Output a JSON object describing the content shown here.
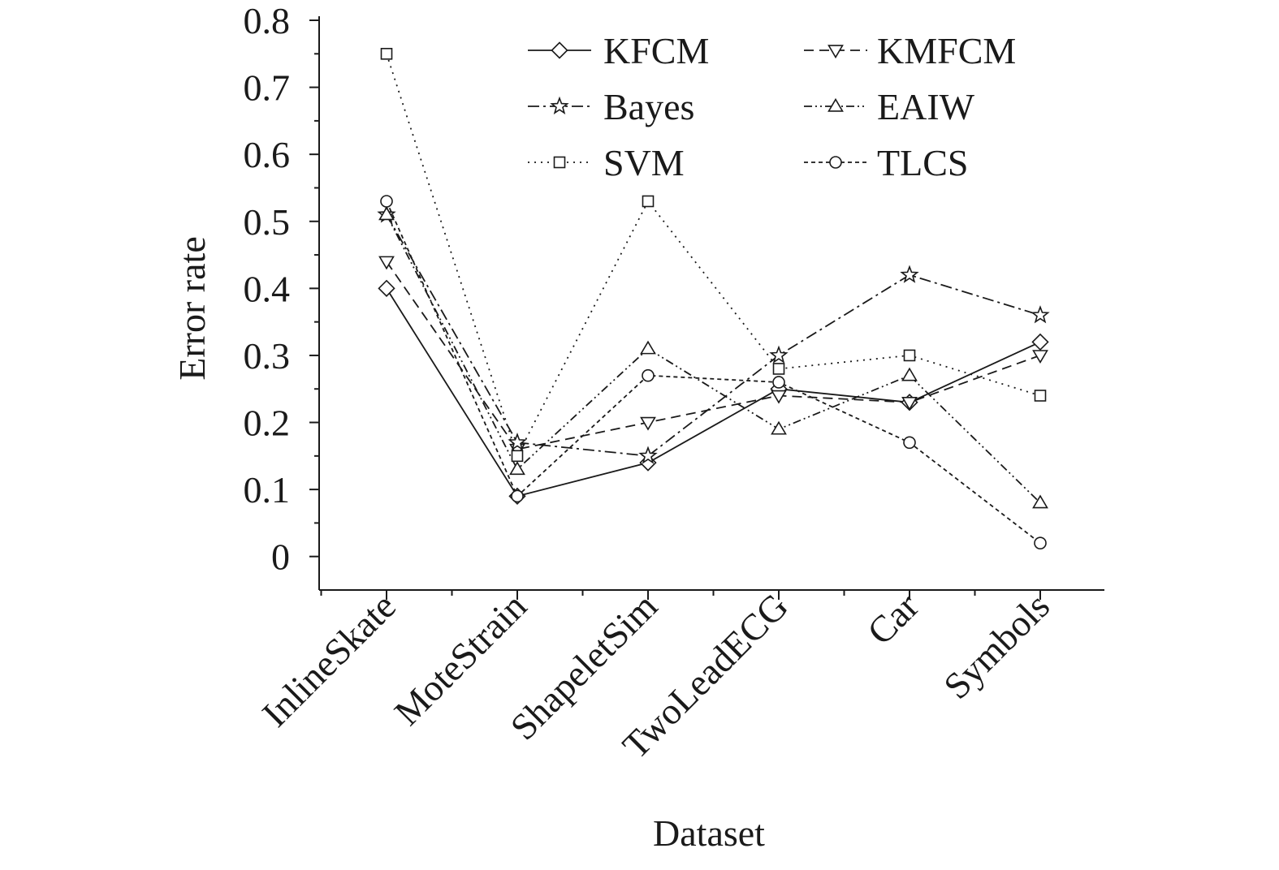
{
  "chart_data": {
    "type": "line",
    "title": "",
    "xlabel": "Dataset",
    "ylabel": "Error rate",
    "categories": [
      "InlineSkate",
      "MoteStrain",
      "ShapeletSim",
      "TwoLeadECG",
      "Car",
      "Symbols"
    ],
    "ylim": [
      -0.05,
      0.8
    ],
    "yticks": [
      "0",
      "0.1",
      "0.2",
      "0.3",
      "0.4",
      "0.5",
      "0.6",
      "0.7",
      "0.8"
    ],
    "grid": false,
    "legend_position": "top-right",
    "series": [
      {
        "name": "KFCM",
        "marker": "diamond",
        "dash": "solid",
        "values": [
          0.4,
          0.09,
          0.14,
          0.25,
          0.23,
          0.32
        ]
      },
      {
        "name": "KMFCM",
        "marker": "triangle-down",
        "dash": "dashed",
        "values": [
          0.44,
          0.16,
          0.2,
          0.24,
          0.23,
          0.3
        ]
      },
      {
        "name": "Bayes",
        "marker": "star",
        "dash": "dash-dot",
        "values": [
          0.51,
          0.17,
          0.15,
          0.3,
          0.42,
          0.36
        ]
      },
      {
        "name": "EAIW",
        "marker": "triangle-up",
        "dash": "dash-dot-dot",
        "values": [
          0.51,
          0.13,
          0.31,
          0.19,
          0.27,
          0.08
        ]
      },
      {
        "name": "SVM",
        "marker": "square",
        "dash": "dotted",
        "values": [
          0.75,
          0.15,
          0.53,
          0.28,
          0.3,
          0.24
        ]
      },
      {
        "name": "TLCS",
        "marker": "circle",
        "dash": "short-dash",
        "values": [
          0.53,
          0.09,
          0.27,
          0.26,
          0.17,
          0.02
        ]
      }
    ]
  }
}
